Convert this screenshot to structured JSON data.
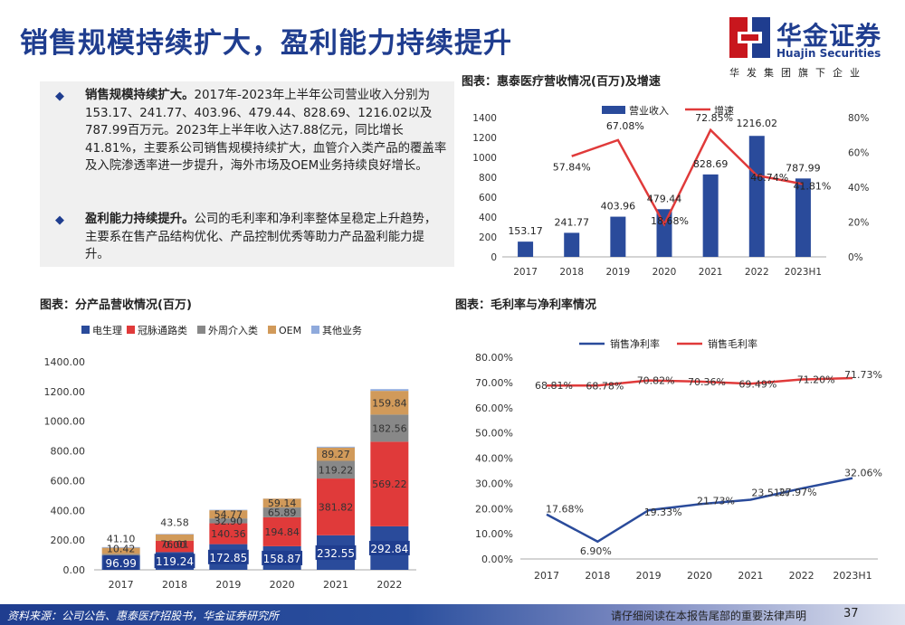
{
  "page_title": "销售规模持续扩大，盈利能力持续提升",
  "logo": {
    "name": "华金证券",
    "english": "Huajin Securities",
    "slogan": "华发集团旗下企业"
  },
  "bullets": [
    {
      "lead": "销售规模持续扩大。",
      "text": "2017年-2023年上半年公司营业收入分别为153.17、241.77、403.96、479.44、828.69、1216.02以及787.99百万元。2023年上半年收入达7.88亿元，同比增长 41.81%，主要系公司销售规模持续扩大，血管介入类产品的覆盖率及入院渗透率进一步提升，海外市场及OEM业务持续良好增长。"
    },
    {
      "lead": "盈利能力持续提升。",
      "text": "公司的毛利率和净利率整体呈稳定上升趋势，主要系在售产品结构优化、产品控制优秀等助力产品盈利能力提升。"
    }
  ],
  "chart_titles": {
    "revenue": "图表：惠泰医疗营收情况(百万)及增速",
    "product": "图表：分产品营收情况(百万)",
    "margin": "图表：毛利率与净利率情况"
  },
  "chart_data": [
    {
      "type": "bar",
      "categories": [
        "2017",
        "2018",
        "2019",
        "2020",
        "2021",
        "2022",
        "2023H1"
      ],
      "series": [
        {
          "name": "营业收入",
          "values": [
            153.17,
            241.77,
            403.96,
            479.44,
            828.69,
            1216.02,
            787.99
          ],
          "color": "#2a4b9b",
          "axis": "left"
        },
        {
          "name": "增速",
          "values": [
            null,
            57.84,
            67.08,
            18.68,
            72.85,
            46.74,
            41.81
          ],
          "color": "#e03a3a",
          "axis": "right",
          "type": "line"
        }
      ],
      "value_labels": [
        "153.17",
        "241.77",
        "403.96",
        "479.44",
        "828.69",
        "1216.02",
        "787.99"
      ],
      "rate_labels": [
        "",
        "57.84%",
        "67.08%",
        "18.68%",
        "72.85%",
        "46.74%",
        "41.81%"
      ],
      "ylim_left": [
        0,
        1400
      ],
      "ylim_right": [
        0,
        80
      ],
      "yticks_left": [
        "0",
        "200",
        "400",
        "600",
        "800",
        "1000",
        "1200",
        "1400"
      ],
      "yticks_right": [
        "0%",
        "20%",
        "40%",
        "60%",
        "80%"
      ],
      "legend_position": "top"
    },
    {
      "type": "bar",
      "stacked": true,
      "categories": [
        "2017",
        "2018",
        "2019",
        "2020",
        "2021",
        "2022"
      ],
      "series": [
        {
          "name": "电生理",
          "values": [
            96.99,
            119.24,
            172.85,
            158.87,
            232.55,
            292.84
          ],
          "color": "#2a4b9b"
        },
        {
          "name": "冠脉通路类",
          "values": [
            0,
            76.01,
            140.36,
            194.84,
            381.82,
            569.22
          ],
          "color": "#e03a3a"
        },
        {
          "name": "外周介入类",
          "values": [
            10.42,
            0.0,
            32.9,
            65.89,
            119.22,
            182.56
          ],
          "color": "#888888"
        },
        {
          "name": "OEM",
          "values": [
            41.1,
            43.58,
            54.77,
            59.14,
            89.27,
            159.84
          ],
          "color": "#d19a5a"
        },
        {
          "name": "其他业务",
          "values": [
            4.66,
            2.94,
            3.08,
            0.7,
            5.83,
            11.56
          ],
          "color": "#8faadc"
        }
      ],
      "data_labels": [
        [
          "96.99",
          "",
          "10.42",
          "41.10"
        ],
        [
          "119.24",
          "76.01",
          "0.00",
          "43.58"
        ],
        [
          "172.85",
          "140.36",
          "32.90",
          "54.77"
        ],
        [
          "158.87",
          "194.84",
          "65.89",
          "59.14"
        ],
        [
          "232.55",
          "381.82",
          "119.22",
          "89.27"
        ],
        [
          "292.84",
          "569.22",
          "182.56",
          "159.84"
        ]
      ],
      "ylim": [
        0,
        1400
      ],
      "yticks": [
        "0.00",
        "200.00",
        "400.00",
        "600.00",
        "800.00",
        "1000.00",
        "1200.00",
        "1400.00"
      ],
      "legend_position": "top-left"
    },
    {
      "type": "line",
      "categories": [
        "2017",
        "2018",
        "2019",
        "2020",
        "2021",
        "2022",
        "2023H1"
      ],
      "series": [
        {
          "name": "销售净利率",
          "values": [
            17.68,
            6.9,
            19.33,
            21.73,
            23.51,
            27.97,
            32.06
          ],
          "color": "#2a4b9b"
        },
        {
          "name": "销售毛利率",
          "values": [
            68.81,
            68.78,
            70.82,
            70.36,
            69.49,
            71.2,
            71.73
          ],
          "color": "#e03a3a"
        }
      ],
      "net_labels": [
        "17.68%",
        "6.90%",
        "19.33%",
        "21.73%",
        "23.51%",
        "27.97%",
        "32.06%"
      ],
      "gross_labels": [
        "68.81%",
        "68.78%",
        "70.82%",
        "70.36%",
        "69.49%",
        "71.20%",
        "71.73%"
      ],
      "ylim": [
        0,
        80
      ],
      "yticks": [
        "0.00%",
        "10.00%",
        "20.00%",
        "30.00%",
        "40.00%",
        "50.00%",
        "60.00%",
        "70.00%",
        "80.00%"
      ],
      "legend_position": "top"
    }
  ],
  "footer": {
    "source": "资料来源：公司公告、惠泰医疗招股书，华金证券研究所",
    "notice": "请仔细阅读在本报告尾部的重要法律声明",
    "page": "37"
  },
  "colors": {
    "brand_blue": "#1f3d8f",
    "red": "#e03a3a",
    "logo_red": "#c8161d"
  }
}
